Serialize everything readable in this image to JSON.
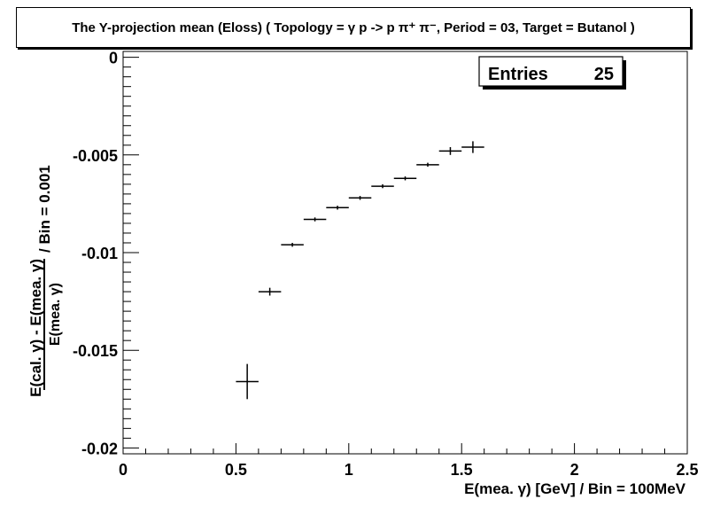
{
  "title": "The Y-projection mean (Eloss) ( Topology = γ p -> p π⁺ π⁻, Period = 03, Target = Butanol )",
  "stats": {
    "label": "Entries",
    "value": "25"
  },
  "chart_data": {
    "type": "scatter",
    "title": "The Y-projection mean (Eloss) ( Topology = γ p -> p π⁺ π⁻, Period = 03, Target = Butanol )",
    "xlabel": "E(mea. γ) [GeV] / Bin = 100MeV",
    "ylabel": {
      "numerator": "E(cal. γ) - E(mea. γ)",
      "denominator": "E(mea. γ)",
      "suffix": "/ Bin = 0.001"
    },
    "xlim": [
      0,
      2.5
    ],
    "ylim": [
      -0.0203,
      0.0003
    ],
    "x_ticks": [
      "0",
      "0.5",
      "1",
      "1.5",
      "2",
      "2.5"
    ],
    "x_tick_values": [
      0,
      0.5,
      1,
      1.5,
      2,
      2.5
    ],
    "y_ticks": [
      "0",
      "-0.005",
      "-0.01",
      "-0.015",
      "-0.02"
    ],
    "y_tick_values": [
      0,
      -0.005,
      -0.01,
      -0.015,
      -0.02
    ],
    "grid": false,
    "points": [
      {
        "x": 0.55,
        "y": -0.0166,
        "xerr": 0.05,
        "yerr": 0.0009
      },
      {
        "x": 0.65,
        "y": -0.012,
        "xerr": 0.05,
        "yerr": 0.0002
      },
      {
        "x": 0.75,
        "y": -0.0096,
        "xerr": 0.05,
        "yerr": 0.0001
      },
      {
        "x": 0.85,
        "y": -0.0083,
        "xerr": 0.05,
        "yerr": 0.0001
      },
      {
        "x": 0.95,
        "y": -0.0077,
        "xerr": 0.05,
        "yerr": 0.0001
      },
      {
        "x": 1.05,
        "y": -0.0072,
        "xerr": 0.05,
        "yerr": 0.0001
      },
      {
        "x": 1.15,
        "y": -0.0066,
        "xerr": 0.05,
        "yerr": 0.0001
      },
      {
        "x": 1.25,
        "y": -0.0062,
        "xerr": 0.05,
        "yerr": 0.0001
      },
      {
        "x": 1.35,
        "y": -0.0055,
        "xerr": 0.05,
        "yerr": 0.0001
      },
      {
        "x": 1.45,
        "y": -0.0048,
        "xerr": 0.05,
        "yerr": 0.0002
      },
      {
        "x": 1.55,
        "y": -0.0046,
        "xerr": 0.05,
        "yerr": 0.0003
      }
    ]
  }
}
